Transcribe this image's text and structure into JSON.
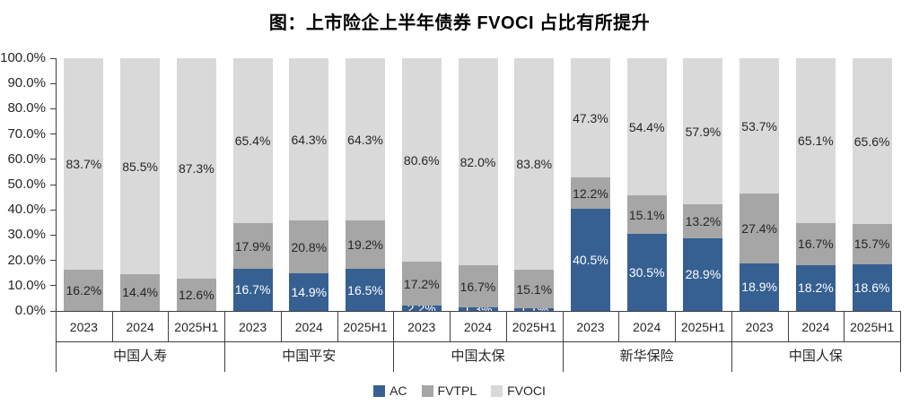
{
  "title": "图：上市险企上半年债券 FVOCI 占比有所提升",
  "colors": {
    "background": "#FFFFFF",
    "axis_line": "#3F3F3F",
    "label_dark": "#262626",
    "label_light": "#FFFFFF"
  },
  "chart_data": {
    "type": "bar",
    "subtype": "stacked-100-percent",
    "title": "图：上市险企上半年债券 FVOCI 占比有所提升",
    "xlabel": "",
    "ylabel": "",
    "ylim": [
      0,
      100
    ],
    "ytick_step": 10,
    "ytick_labels": [
      "0.0%",
      "10.0%",
      "20.0%",
      "30.0%",
      "40.0%",
      "50.0%",
      "60.0%",
      "70.0%",
      "80.0%",
      "90.0%",
      "100.0%"
    ],
    "grid": false,
    "legend_position": "bottom",
    "series_order": [
      "AC",
      "FVTPL",
      "FVOCI"
    ],
    "series_colors": {
      "AC": "#366092",
      "FVTPL": "#A6A6A6",
      "FVOCI": "#D9D9D9"
    },
    "legend_items": [
      {
        "label": "AC",
        "color": "#366092"
      },
      {
        "label": "FVTPL",
        "color": "#A6A6A6"
      },
      {
        "label": "FVOCI",
        "color": "#D9D9D9"
      }
    ],
    "groups": [
      {
        "name": "中国人寿",
        "bars": [
          {
            "period": "2023",
            "AC": 0.1,
            "FVTPL": 16.2,
            "FVOCI": 83.7
          },
          {
            "period": "2024",
            "AC": 0.1,
            "FVTPL": 14.4,
            "FVOCI": 85.5
          },
          {
            "period": "2025H1",
            "AC": 0.1,
            "FVTPL": 12.6,
            "FVOCI": 87.3
          }
        ]
      },
      {
        "name": "中国平安",
        "bars": [
          {
            "period": "2023",
            "AC": 16.7,
            "FVTPL": 17.9,
            "FVOCI": 65.4
          },
          {
            "period": "2024",
            "AC": 14.9,
            "FVTPL": 20.8,
            "FVOCI": 64.3
          },
          {
            "period": "2025H1",
            "AC": 16.5,
            "FVTPL": 19.2,
            "FVOCI": 64.3
          }
        ]
      },
      {
        "name": "中国太保",
        "bars": [
          {
            "period": "2023",
            "AC": 2.2,
            "FVTPL": 17.2,
            "FVOCI": 80.6
          },
          {
            "period": "2024",
            "AC": 1.3,
            "FVTPL": 16.7,
            "FVOCI": 82.0
          },
          {
            "period": "2025H1",
            "AC": 1.1,
            "FVTPL": 15.1,
            "FVOCI": 83.8
          }
        ]
      },
      {
        "name": "新华保险",
        "bars": [
          {
            "period": "2023",
            "AC": 40.5,
            "FVTPL": 12.2,
            "FVOCI": 47.3
          },
          {
            "period": "2024",
            "AC": 30.5,
            "FVTPL": 15.1,
            "FVOCI": 54.4
          },
          {
            "period": "2025H1",
            "AC": 28.9,
            "FVTPL": 13.2,
            "FVOCI": 57.9
          }
        ]
      },
      {
        "name": "中国人保",
        "bars": [
          {
            "period": "2023",
            "AC": 18.9,
            "FVTPL": 27.4,
            "FVOCI": 53.7
          },
          {
            "period": "2024",
            "AC": 18.2,
            "FVTPL": 16.7,
            "FVOCI": 65.1
          },
          {
            "period": "2025H1",
            "AC": 18.6,
            "FVTPL": 15.7,
            "FVOCI": 65.6
          }
        ]
      }
    ]
  }
}
